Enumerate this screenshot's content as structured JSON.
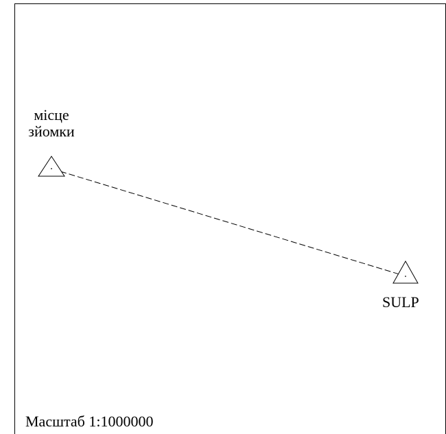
{
  "map": {
    "start_point": {
      "label_line1": "місце",
      "label_line2": "зйомки",
      "icon": "triangle-marker-icon"
    },
    "end_point": {
      "label": "SULP",
      "icon": "triangle-marker-icon"
    },
    "route": {
      "style": "dashed"
    },
    "scale_text": "Масштаб 1:1000000"
  }
}
